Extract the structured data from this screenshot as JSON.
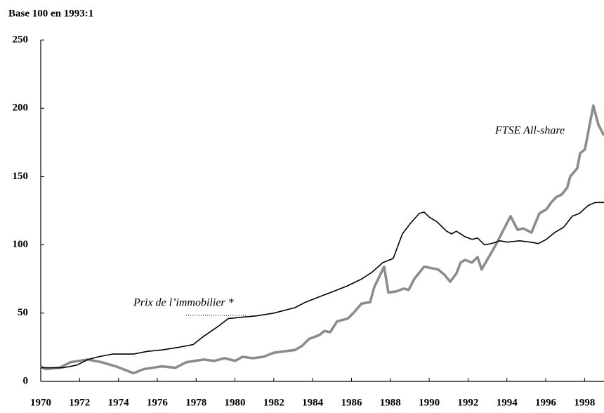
{
  "chart_data": {
    "type": "line",
    "subtitle": "Base 100 en 1993:1",
    "annotations": [
      "FTSE All-share",
      "Prix de l’immobilier *"
    ],
    "xlim": [
      1970,
      1999
    ],
    "xticks": [
      1970,
      1972,
      1974,
      1976,
      1978,
      1980,
      1982,
      1984,
      1986,
      1988,
      1990,
      1992,
      1994,
      1996,
      1998
    ],
    "ylim": [
      0,
      250
    ],
    "yticks": [
      0,
      50,
      100,
      150,
      200,
      250
    ],
    "series": [
      {
        "name": "Prix de l’immobilier *",
        "color": "#000000",
        "width": 1.6,
        "x": [
          1970,
          1971.16,
          1971.88,
          1972.42,
          1972.96,
          1973.69,
          1974.77,
          1975.5,
          1976.22,
          1977.12,
          1977.85,
          1978.39,
          1979.11,
          1979.65,
          1980.38,
          1981.1,
          1982,
          1983.09,
          1983.63,
          1984.35,
          1985.08,
          1985.8,
          1986.52,
          1987.06,
          1987.61,
          1988.15,
          1988.62,
          1989.05,
          1989.49,
          1989.74,
          1990.03,
          1990.39,
          1990.9,
          1991.15,
          1991.4,
          1991.84,
          1992.2,
          1992.49,
          1992.85,
          1993.21,
          1993.64,
          1994.01,
          1994.66,
          1995.2,
          1995.63,
          1996.03,
          1996.46,
          1996.93,
          1997.37,
          1997.73,
          1998.2,
          1998.56,
          1999
        ],
        "values": [
          10,
          10,
          12,
          16,
          18,
          20,
          20,
          22,
          23,
          25,
          27,
          33,
          40,
          46,
          47,
          48,
          50,
          54,
          58,
          62,
          66,
          70,
          75,
          80,
          87,
          90,
          108,
          116,
          123,
          124,
          120,
          117,
          110,
          108,
          110,
          106,
          104,
          105,
          100,
          101,
          103,
          102,
          103,
          102,
          101,
          104,
          109,
          113,
          121,
          123,
          129,
          131,
          131
        ]
      },
      {
        "name": "FTSE All-share",
        "color": "#8c8c8c",
        "width": 3.6,
        "x": [
          1970,
          1970.25,
          1970.98,
          1971.52,
          1972.42,
          1973.15,
          1973.87,
          1974.41,
          1974.77,
          1975.31,
          1976.22,
          1976.94,
          1977.48,
          1978.39,
          1978.93,
          1979.47,
          1980.01,
          1980.38,
          1980.92,
          1981.46,
          1982,
          1982.55,
          1983.09,
          1983.45,
          1983.81,
          1984.35,
          1984.61,
          1984.9,
          1985.26,
          1985.8,
          1986.09,
          1986.52,
          1986.96,
          1987.17,
          1987.68,
          1987.9,
          1988.33,
          1988.69,
          1988.94,
          1989.23,
          1989.74,
          1990.1,
          1990.46,
          1990.79,
          1991.08,
          1991.4,
          1991.62,
          1991.84,
          1992.2,
          1992.49,
          1992.7,
          1993.43,
          1993.86,
          1994.19,
          1994.55,
          1994.84,
          1995.27,
          1995.67,
          1996.03,
          1996.28,
          1996.54,
          1996.83,
          1997.11,
          1997.26,
          1997.62,
          1997.77,
          1998.02,
          1998.45,
          1998.71,
          1999
        ],
        "values": [
          11,
          9,
          10,
          14,
          16,
          14,
          11,
          8,
          6,
          9,
          11,
          10,
          14,
          16,
          15,
          17,
          15,
          18,
          17,
          18,
          21,
          22,
          23,
          26,
          31,
          34,
          37,
          36,
          44,
          46,
          50,
          57,
          58,
          69,
          84,
          65,
          66,
          68,
          67,
          75,
          84,
          83,
          82,
          78,
          73,
          79,
          87,
          89,
          87,
          91,
          82,
          100,
          112,
          121,
          111,
          112,
          109,
          123,
          126,
          131,
          135,
          137,
          142,
          150,
          156,
          167,
          170,
          202,
          188,
          180
        ]
      }
    ]
  }
}
